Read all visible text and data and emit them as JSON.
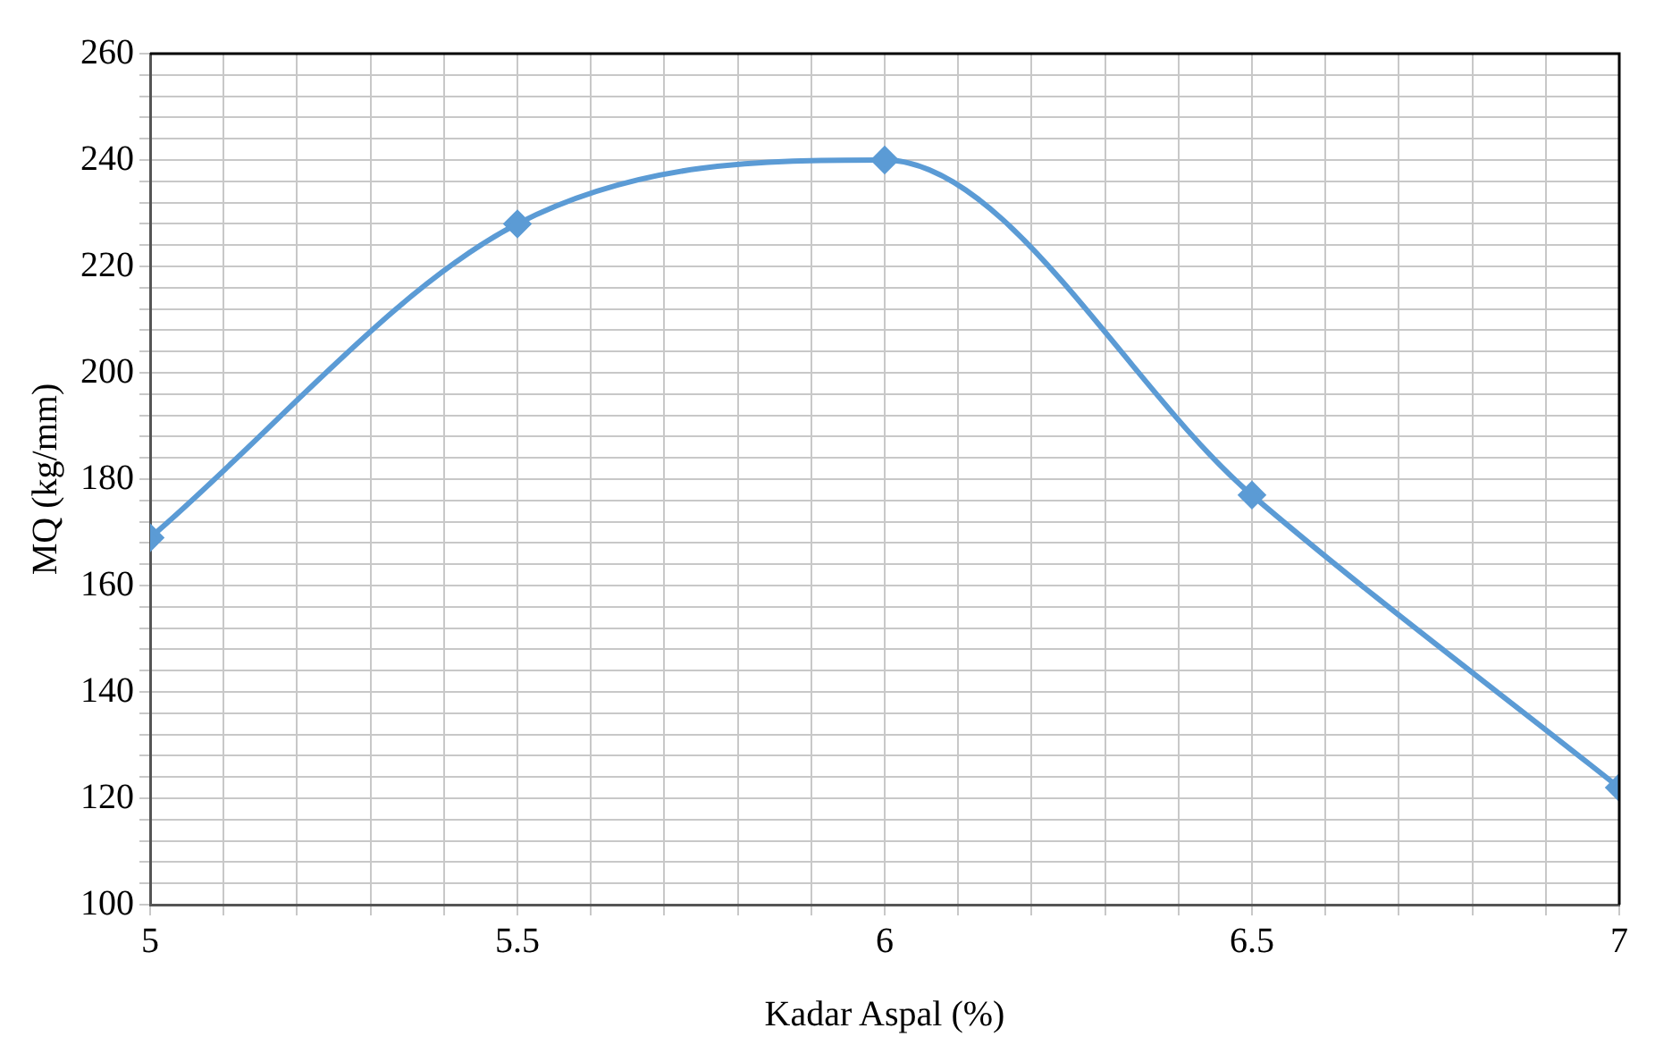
{
  "chart_data": {
    "type": "line",
    "xlabel": "Kadar Aspal (%)",
    "ylabel": "MQ (kg/mm)",
    "x": [
      5,
      5.5,
      6,
      6.5,
      7
    ],
    "series": [
      {
        "color": "#5b9bd5",
        "values": [
          169,
          228,
          240,
          177,
          122
        ]
      }
    ],
    "xlim": [
      5,
      7
    ],
    "xticks": [
      5,
      {
        "value": 5.1,
        "label": null
      },
      {
        "value": 5.2,
        "label": null
      },
      {
        "value": 5.3,
        "label": null
      },
      {
        "value": 5.4,
        "label": null
      },
      5.5,
      {
        "value": 5.6,
        "label": null
      },
      {
        "value": 5.7,
        "label": null
      },
      {
        "value": 5.8,
        "label": null
      },
      {
        "value": 5.9,
        "label": null
      },
      6,
      {
        "value": 6.1,
        "label": null
      },
      {
        "value": 6.2,
        "label": null
      },
      {
        "value": 6.3,
        "label": null
      },
      {
        "value": 6.4,
        "label": null
      },
      6.5,
      {
        "value": 6.6,
        "label": null
      },
      {
        "value": 6.7,
        "label": null
      },
      {
        "value": 6.8,
        "label": null
      },
      {
        "value": 6.9,
        "label": null
      },
      7
    ],
    "ylim": [
      100,
      260
    ],
    "yticks": [
      100,
      {
        "value": 104,
        "label": null
      },
      {
        "value": 108,
        "label": null
      },
      {
        "value": 112,
        "label": null
      },
      {
        "value": 116,
        "label": null
      },
      120,
      {
        "value": 124,
        "label": null
      },
      {
        "value": 128,
        "label": null
      },
      {
        "value": 132,
        "label": null
      },
      {
        "value": 136,
        "label": null
      },
      140,
      {
        "value": 144,
        "label": null
      },
      {
        "value": 148,
        "label": null
      },
      {
        "value": 152,
        "label": null
      },
      {
        "value": 156,
        "label": null
      },
      160,
      {
        "value": 164,
        "label": null
      },
      {
        "value": 168,
        "label": null
      },
      {
        "value": 172,
        "label": null
      },
      {
        "value": 176,
        "label": null
      },
      180,
      {
        "value": 184,
        "label": null
      },
      {
        "value": 188,
        "label": null
      },
      {
        "value": 192,
        "label": null
      },
      {
        "value": 196,
        "label": null
      },
      200,
      {
        "value": 204,
        "label": null
      },
      {
        "value": 208,
        "label": null
      },
      {
        "value": 212,
        "label": null
      },
      {
        "value": 216,
        "label": null
      },
      220,
      {
        "value": 224,
        "label": null
      },
      {
        "value": 228,
        "label": null
      },
      {
        "value": 232,
        "label": null
      },
      {
        "value": 236,
        "label": null
      },
      240,
      {
        "value": 244,
        "label": null
      },
      {
        "value": 248,
        "label": null
      },
      {
        "value": 252,
        "label": null
      },
      {
        "value": 256,
        "label": null
      },
      260
    ],
    "grid": true,
    "legend": false,
    "marker": "diamond",
    "line_style": "solid"
  }
}
